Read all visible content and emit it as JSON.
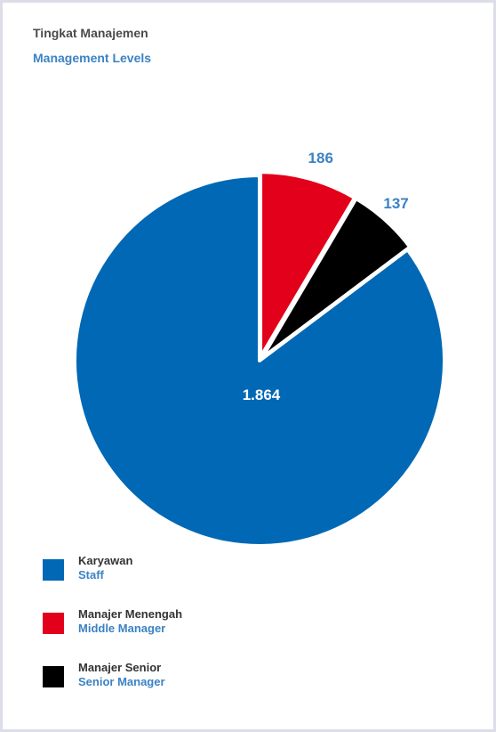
{
  "header": {
    "title_id": "Tingkat Manajemen",
    "title_en": "Management Levels"
  },
  "colors": {
    "staff": "#0068b4",
    "middle": "#e2001a",
    "senior": "#000000",
    "value_label_blue": "#3b82c4"
  },
  "chart_data": {
    "type": "pie",
    "title": "Tingkat Manajemen",
    "subtitle": "Management Levels",
    "slices": [
      {
        "label_id": "Karyawan",
        "label_en": "Staff",
        "value": 1864,
        "display": "1.864",
        "color": "#0068b4"
      },
      {
        "label_id": "Manajer Menengah",
        "label_en": "Middle Manager",
        "value": 186,
        "display": "186",
        "color": "#e2001a"
      },
      {
        "label_id": "Manajer Senior",
        "label_en": "Senior Manager",
        "value": 137,
        "display": "137",
        "color": "#000000"
      }
    ]
  },
  "legend": {
    "items": [
      {
        "label_id": "Karyawan",
        "label_en": "Staff"
      },
      {
        "label_id": "Manajer Menengah",
        "label_en": "Middle Manager"
      },
      {
        "label_id": "Manajer Senior",
        "label_en": "Senior Manager"
      }
    ]
  }
}
